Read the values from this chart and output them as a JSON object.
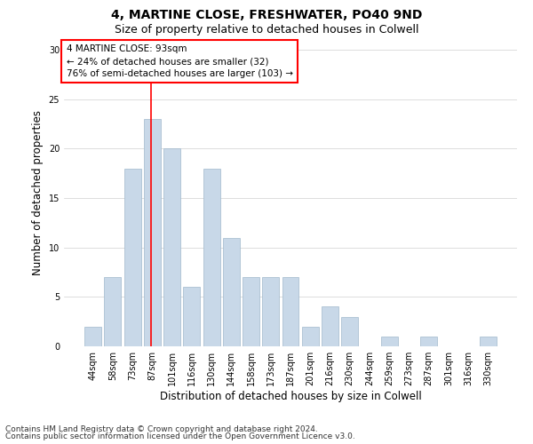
{
  "title1": "4, MARTINE CLOSE, FRESHWATER, PO40 9ND",
  "title2": "Size of property relative to detached houses in Colwell",
  "xlabel": "Distribution of detached houses by size in Colwell",
  "ylabel": "Number of detached properties",
  "categories": [
    "44sqm",
    "58sqm",
    "73sqm",
    "87sqm",
    "101sqm",
    "116sqm",
    "130sqm",
    "144sqm",
    "158sqm",
    "173sqm",
    "187sqm",
    "201sqm",
    "216sqm",
    "230sqm",
    "244sqm",
    "259sqm",
    "273sqm",
    "287sqm",
    "301sqm",
    "316sqm",
    "330sqm"
  ],
  "values": [
    2,
    7,
    18,
    23,
    20,
    6,
    18,
    11,
    7,
    7,
    7,
    2,
    4,
    3,
    0,
    1,
    0,
    1,
    0,
    0,
    1
  ],
  "bar_color": "#c8d8e8",
  "bar_edgecolor": "#a0b8cc",
  "grid_color": "#d0d0d0",
  "vline_color": "red",
  "annotation_title": "4 MARTINE CLOSE: 93sqm",
  "annotation_line1": "← 24% of detached houses are smaller (32)",
  "annotation_line2": "76% of semi-detached houses are larger (103) →",
  "annotation_box_color": "white",
  "annotation_box_edgecolor": "red",
  "ylim": [
    0,
    31
  ],
  "yticks": [
    0,
    5,
    10,
    15,
    20,
    25,
    30
  ],
  "footnote1": "Contains HM Land Registry data © Crown copyright and database right 2024.",
  "footnote2": "Contains public sector information licensed under the Open Government Licence v3.0.",
  "title1_fontsize": 10,
  "title2_fontsize": 9,
  "xlabel_fontsize": 8.5,
  "ylabel_fontsize": 8.5,
  "tick_fontsize": 7,
  "footnote_fontsize": 6.5,
  "annotation_fontsize": 7.5
}
